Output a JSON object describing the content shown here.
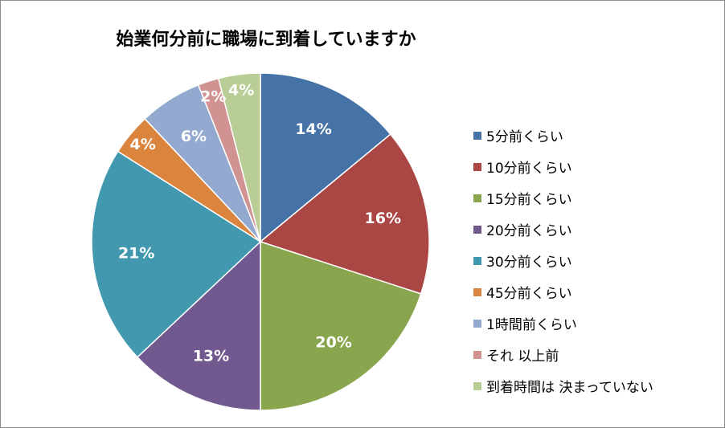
{
  "chart_data": {
    "type": "pie",
    "title": "始業何分前に職場に到着していますか",
    "legend_position": "right",
    "start_angle": "top",
    "direction": "clockwise",
    "slices": [
      {
        "name": "5分前くらい",
        "value": 14,
        "label": "14%",
        "color": "#4572a7"
      },
      {
        "name": "10分前くらい",
        "value": 16,
        "label": "16%",
        "color": "#aa4643"
      },
      {
        "name": "15分前くらい",
        "value": 20,
        "label": "20%",
        "color": "#89a54e"
      },
      {
        "name": "20分前くらい",
        "value": 13,
        "label": "13%",
        "color": "#71588f"
      },
      {
        "name": "30分前くらい",
        "value": 21,
        "label": "21%",
        "color": "#4198af"
      },
      {
        "name": "45分前くらい",
        "value": 4,
        "label": "4%",
        "color": "#db843d"
      },
      {
        "name": "1時間前くらい",
        "value": 6,
        "label": "6%",
        "color": "#93a9cf"
      },
      {
        "name": "それ 以上前",
        "value": 2,
        "label": "2%",
        "color": "#d19392"
      },
      {
        "name": "到着時間は 決まっていない",
        "value": 4,
        "label": "4%",
        "color": "#b9cd96"
      }
    ]
  }
}
